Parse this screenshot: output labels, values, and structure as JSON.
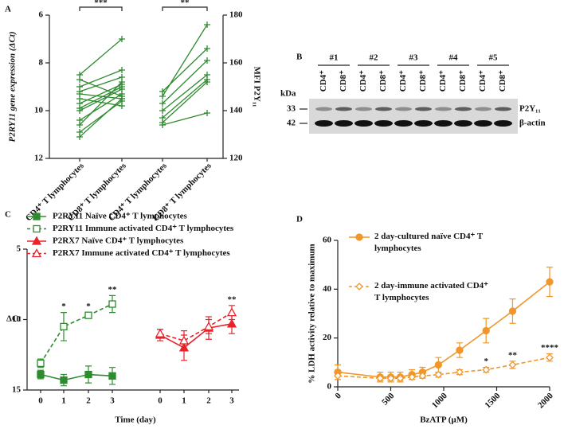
{
  "chart_data": [
    {
      "type": "paired",
      "panel_label": "A",
      "color": "#2e8b2e",
      "ylabel": "P2RY11 gene expression (ΔCt)",
      "y2label": "MFI  P2Y₁₁",
      "ylim": [
        12,
        6
      ],
      "yticks": [
        6,
        8,
        10,
        12
      ],
      "y2lim": [
        120,
        180
      ],
      "y2ticks": [
        120,
        140,
        160,
        180
      ],
      "groups": [
        {
          "axis": "y",
          "categories": [
            "CD4⁺ T lymphocytes",
            "CD8⁺ T lymphocytes"
          ],
          "significance": "***",
          "pairs": [
            [
              8.5,
              7.0
            ],
            [
              8.7,
              9.4
            ],
            [
              9.0,
              8.3
            ],
            [
              9.2,
              8.6
            ],
            [
              9.3,
              9.5
            ],
            [
              9.5,
              9.8
            ],
            [
              9.7,
              8.9
            ],
            [
              9.9,
              9.0
            ],
            [
              10.0,
              9.1
            ],
            [
              10.4,
              9.3
            ],
            [
              10.6,
              8.8
            ],
            [
              10.9,
              9.6
            ],
            [
              11.1,
              9.5
            ]
          ]
        },
        {
          "axis": "y2",
          "categories": [
            "CD4⁺ T lymphocytes",
            "CD8⁺ T lymphocytes"
          ],
          "significance": "**",
          "pairs": [
            [
              148,
              166
            ],
            [
              146,
              176
            ],
            [
              143,
              161
            ],
            [
              140,
              155
            ],
            [
              137,
              153
            ],
            [
              135,
              152
            ],
            [
              134,
              139
            ]
          ]
        }
      ]
    },
    {
      "type": "blot",
      "panel_label": "B",
      "unit": "kDa",
      "groups": [
        "#1",
        "#2",
        "#3",
        "#4",
        "#5"
      ],
      "lanes": [
        {
          "label": "CD4⁺",
          "color": "#e8822a"
        },
        {
          "label": "CD8⁺",
          "color": "#8e44ad"
        }
      ],
      "markers": [
        "33",
        "42"
      ],
      "bands": [
        {
          "label": "P2Y₁₁",
          "color": "#2eaa55"
        },
        {
          "label": "β-actin",
          "color": "#111111"
        }
      ]
    },
    {
      "type": "line",
      "panel_label": "C",
      "ylabel": "ΔCt",
      "xlabel": "Time (day)",
      "categories": [
        "0",
        "1",
        "2",
        "3",
        "0",
        "1",
        "2",
        "3"
      ],
      "ylim": [
        15,
        5
      ],
      "yticks": [
        5,
        10,
        15
      ],
      "series": [
        {
          "name": "P2RY11 Naïve CD4⁺ T lymphocytes",
          "color": "#2e8b2e",
          "marker": "square",
          "filled": true,
          "dashed": false,
          "values": [
            13.9,
            14.3,
            13.9,
            14.0,
            null,
            null,
            null,
            null
          ],
          "errors": [
            0.3,
            0.4,
            0.6,
            0.6,
            null,
            null,
            null,
            null
          ]
        },
        {
          "name": "P2RY11 Immune activated CD4⁺ T lymphocytes",
          "color": "#2e8b2e",
          "marker": "square",
          "filled": false,
          "dashed": true,
          "values": [
            13.1,
            10.5,
            9.7,
            8.9,
            null,
            null,
            null,
            null
          ],
          "errors": [
            0.3,
            1.0,
            0.2,
            0.6,
            null,
            null,
            null,
            null
          ],
          "significance": [
            null,
            "*",
            "*",
            "**",
            null,
            null,
            null,
            null
          ]
        },
        {
          "name": "P2RX7 Naïve CD4⁺ T lymphocytes",
          "color": "#e8222a",
          "marker": "triangle",
          "filled": true,
          "dashed": false,
          "values": [
            null,
            null,
            null,
            null,
            11.1,
            12.0,
            10.6,
            10.3
          ],
          "errors": [
            null,
            null,
            null,
            null,
            0.4,
            0.9,
            0.8,
            0.7
          ]
        },
        {
          "name": "P2RX7 Immune activated  CD4⁺ T lymphocytes",
          "color": "#e8222a",
          "marker": "triangle",
          "filled": false,
          "dashed": true,
          "values": [
            null,
            null,
            null,
            null,
            11.0,
            11.5,
            10.5,
            9.5
          ],
          "errors": [
            null,
            null,
            null,
            null,
            0.3,
            0.7,
            0.5,
            0.5
          ],
          "significance": [
            null,
            null,
            null,
            null,
            null,
            null,
            null,
            "**"
          ]
        }
      ]
    },
    {
      "type": "line",
      "panel_label": "D",
      "ylabel": "% LDH activity relative to maximum",
      "xlabel": "BzATP (µM)",
      "x": [
        0,
        400,
        500,
        590,
        700,
        800,
        950,
        1150,
        1400,
        1650,
        2000
      ],
      "xlim": [
        0,
        2000
      ],
      "xticks": [
        0,
        500,
        1000,
        1500,
        2000
      ],
      "ylim": [
        0,
        60
      ],
      "yticks": [
        0,
        20,
        40,
        60
      ],
      "series": [
        {
          "name": "2 day-cultured naïve CD4⁺ T lymphocytes",
          "color": "#f0962a",
          "marker": "circle",
          "filled": true,
          "dashed": false,
          "values": [
            6,
            4,
            4,
            4,
            5,
            6,
            9,
            15,
            23,
            31,
            43
          ],
          "errors": [
            3,
            2,
            2,
            2,
            2,
            2,
            3,
            3,
            5,
            5,
            6
          ]
        },
        {
          "name": "2 day-immune activated CD4⁺ T lymphocytes",
          "color": "#f0962a",
          "marker": "diamond",
          "filled": false,
          "dashed": true,
          "values": [
            4.5,
            3.5,
            3.5,
            3.5,
            4,
            4.5,
            5,
            6,
            7,
            9,
            12
          ],
          "errors": [
            1.5,
            1,
            1,
            1,
            1,
            1,
            1,
            1,
            1,
            1.5,
            1.5
          ],
          "significance": [
            null,
            null,
            null,
            null,
            null,
            null,
            null,
            null,
            "*",
            "**",
            "****"
          ]
        }
      ]
    }
  ]
}
